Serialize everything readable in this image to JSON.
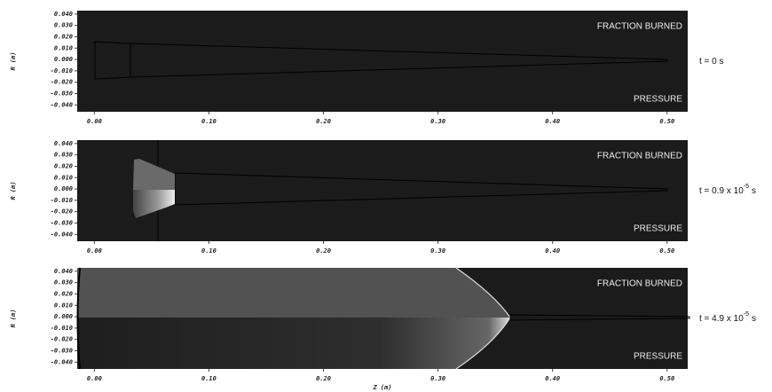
{
  "chart_data": [
    {
      "type": "image",
      "annotations": [
        "FRACTION BURNED",
        "PRESSURE"
      ],
      "time_label": [
        "t = 0 s"
      ],
      "ylabel": "R (m)",
      "xlim": [
        -0.015,
        0.518
      ],
      "ylim": [
        -0.046,
        0.043
      ],
      "xticks": [
        {
          "value": 0,
          "label": "0.00"
        },
        {
          "value": 0.1,
          "label": "0.10"
        },
        {
          "value": 0.2,
          "label": "0.20"
        },
        {
          "value": 0.3,
          "label": "0.30"
        },
        {
          "value": 0.4,
          "label": "0.40"
        },
        {
          "value": 0.5,
          "label": "0.50"
        }
      ],
      "yticks": [
        {
          "value": 0.04,
          "label": "0.040"
        },
        {
          "value": 0.03,
          "label": "0.030"
        },
        {
          "value": 0.02,
          "label": "0.020"
        },
        {
          "value": 0.01,
          "label": "0.010"
        },
        {
          "value": 0,
          "label": "0.000"
        },
        {
          "value": -0.01,
          "label": "-0.010"
        },
        {
          "value": -0.02,
          "label": "-0.020"
        },
        {
          "value": -0.03,
          "label": "-0.030"
        },
        {
          "value": -0.04,
          "label": "-0.040"
        }
      ]
    },
    {
      "type": "image",
      "annotations": [
        "FRACTION BURNED",
        "PRESSURE"
      ],
      "time_label": [
        "t = 0.9 x 10",
        "-5",
        "s"
      ],
      "ylabel": "R (m)",
      "xlim": [
        -0.015,
        0.518
      ],
      "ylim": [
        -0.046,
        0.043
      ],
      "xticks": [
        {
          "value": 0,
          "label": "0.00"
        },
        {
          "value": 0.1,
          "label": "0.10"
        },
        {
          "value": 0.2,
          "label": "0.20"
        },
        {
          "value": 0.3,
          "label": "0.30"
        },
        {
          "value": 0.4,
          "label": "0.40"
        },
        {
          "value": 0.5,
          "label": "0.50"
        }
      ],
      "yticks": [
        {
          "value": 0.04,
          "label": "0.040"
        },
        {
          "value": 0.03,
          "label": "0.030"
        },
        {
          "value": 0.02,
          "label": "0.020"
        },
        {
          "value": 0.01,
          "label": "0.010"
        },
        {
          "value": 0,
          "label": "0.000"
        },
        {
          "value": -0.01,
          "label": "-0.010"
        },
        {
          "value": -0.02,
          "label": "-0.020"
        },
        {
          "value": -0.03,
          "label": "-0.030"
        },
        {
          "value": -0.04,
          "label": "-0.040"
        }
      ]
    },
    {
      "type": "image",
      "annotations": [
        "FRACTION BURNED",
        "PRESSURE"
      ],
      "time_label": [
        "t = 4.9 x 10",
        "-5",
        "s"
      ],
      "ylabel": "R (m)",
      "xlabel": "Z (m)",
      "xlim": [
        -0.015,
        0.518
      ],
      "ylim": [
        -0.046,
        0.043
      ],
      "xticks": [
        {
          "value": 0,
          "label": "0.00"
        },
        {
          "value": 0.1,
          "label": "0.10"
        },
        {
          "value": 0.2,
          "label": "0.20"
        },
        {
          "value": 0.3,
          "label": "0.30"
        },
        {
          "value": 0.4,
          "label": "0.40"
        },
        {
          "value": 0.5,
          "label": "0.50"
        }
      ],
      "yticks": [
        {
          "value": 0.04,
          "label": "0.040"
        },
        {
          "value": 0.03,
          "label": "0.030"
        },
        {
          "value": 0.02,
          "label": "0.020"
        },
        {
          "value": 0.01,
          "label": "0.010"
        },
        {
          "value": 0,
          "label": "0.000"
        },
        {
          "value": -0.01,
          "label": "-0.010"
        },
        {
          "value": -0.02,
          "label": "-0.020"
        },
        {
          "value": -0.03,
          "label": "-0.030"
        },
        {
          "value": -0.04,
          "label": "-0.040"
        }
      ]
    }
  ]
}
